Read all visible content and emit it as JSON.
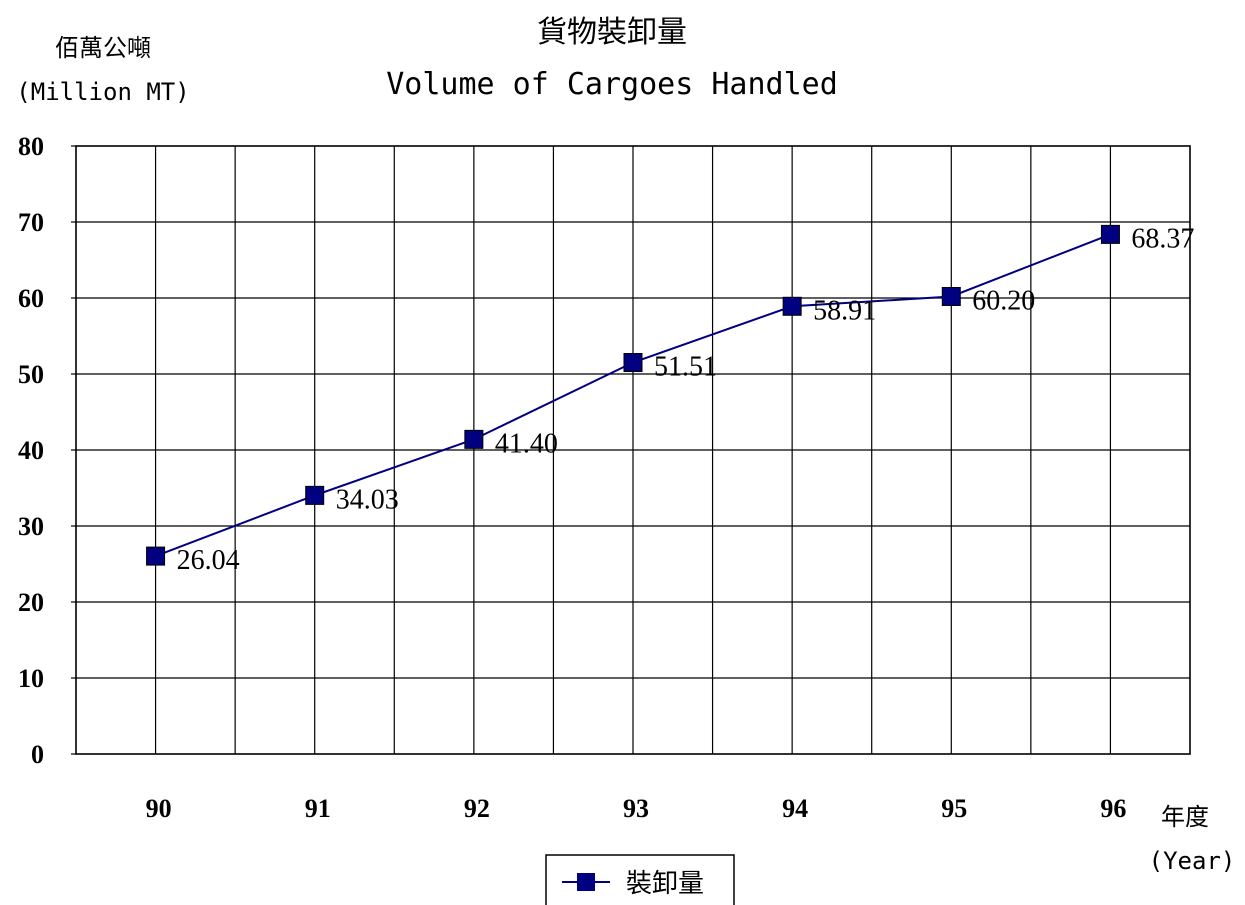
{
  "chart_data": {
    "type": "line",
    "title": "貨物裝卸量",
    "subtitle": "Volume of Cargoes Handled",
    "ylabel": "佰萬公噸",
    "ylabel_en": "(Million MT)",
    "xlabel": "年度",
    "xlabel_en": "(Year)",
    "categories": [
      "90",
      "91",
      "92",
      "93",
      "94",
      "95",
      "96"
    ],
    "ylim": [
      0,
      80
    ],
    "yticks": [
      "0",
      "10",
      "20",
      "30",
      "40",
      "50",
      "60",
      "70",
      "80"
    ],
    "series": [
      {
        "name": "裝卸量",
        "values": [
          26.04,
          34.03,
          41.4,
          51.51,
          58.91,
          60.2,
          68.37
        ],
        "labels": [
          "26.04",
          "34.03",
          "41.40",
          "51.51",
          "58.91",
          "60.20",
          "68.37"
        ],
        "color": "#000080",
        "marker": "square"
      }
    ],
    "grid": true,
    "legend": "bottom-center"
  }
}
